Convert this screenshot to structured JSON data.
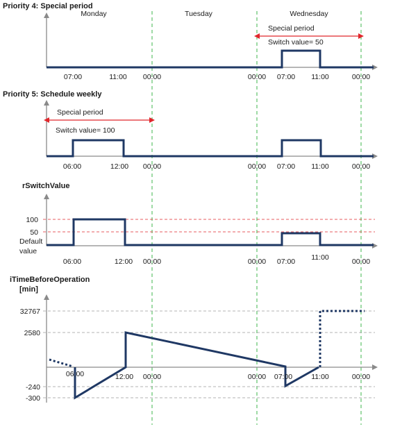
{
  "days": [
    "Monday",
    "Tuesday",
    "Wednesday"
  ],
  "sections": {
    "p4": {
      "title": "Priority 4: Special period",
      "special_label": "Special period",
      "switch_label": "Switch value= 50",
      "ticks": [
        "07:00",
        "11:00",
        "00:00",
        "00:00",
        "07:00",
        "11:00",
        "00:00"
      ]
    },
    "p5": {
      "title": "Priority 5: Schedule weekly",
      "special_label": "Special period",
      "switch_label": "Switch value= 100",
      "ticks": [
        "06:00",
        "12:00",
        "00:00",
        "00:00",
        "07:00",
        "11:00",
        "00:00"
      ]
    },
    "rsw": {
      "title": "rSwitchValue",
      "y_labels": [
        "100",
        "50",
        "Default",
        "value"
      ],
      "ticks": [
        "06:00",
        "12:00",
        "00:00",
        "00:00",
        "07:00",
        "11:00",
        "00:00"
      ]
    },
    "itb": {
      "title": "iTimeBeforeOperation",
      "unit": "[min]",
      "y_labels": [
        "32767",
        "2580",
        "-240",
        "-300"
      ],
      "ticks": [
        "06:00",
        "12:00",
        "00:00",
        "00:00",
        "07:00",
        "11:00",
        "00:00"
      ]
    }
  },
  "colors": {
    "signal": "#1f3864",
    "axis": "#7f7f7f",
    "midnight": "#3cb44b",
    "special_arrow": "#e0262b",
    "ref_red": "#e0262b",
    "ref_gray": "#9a9a9a"
  }
}
